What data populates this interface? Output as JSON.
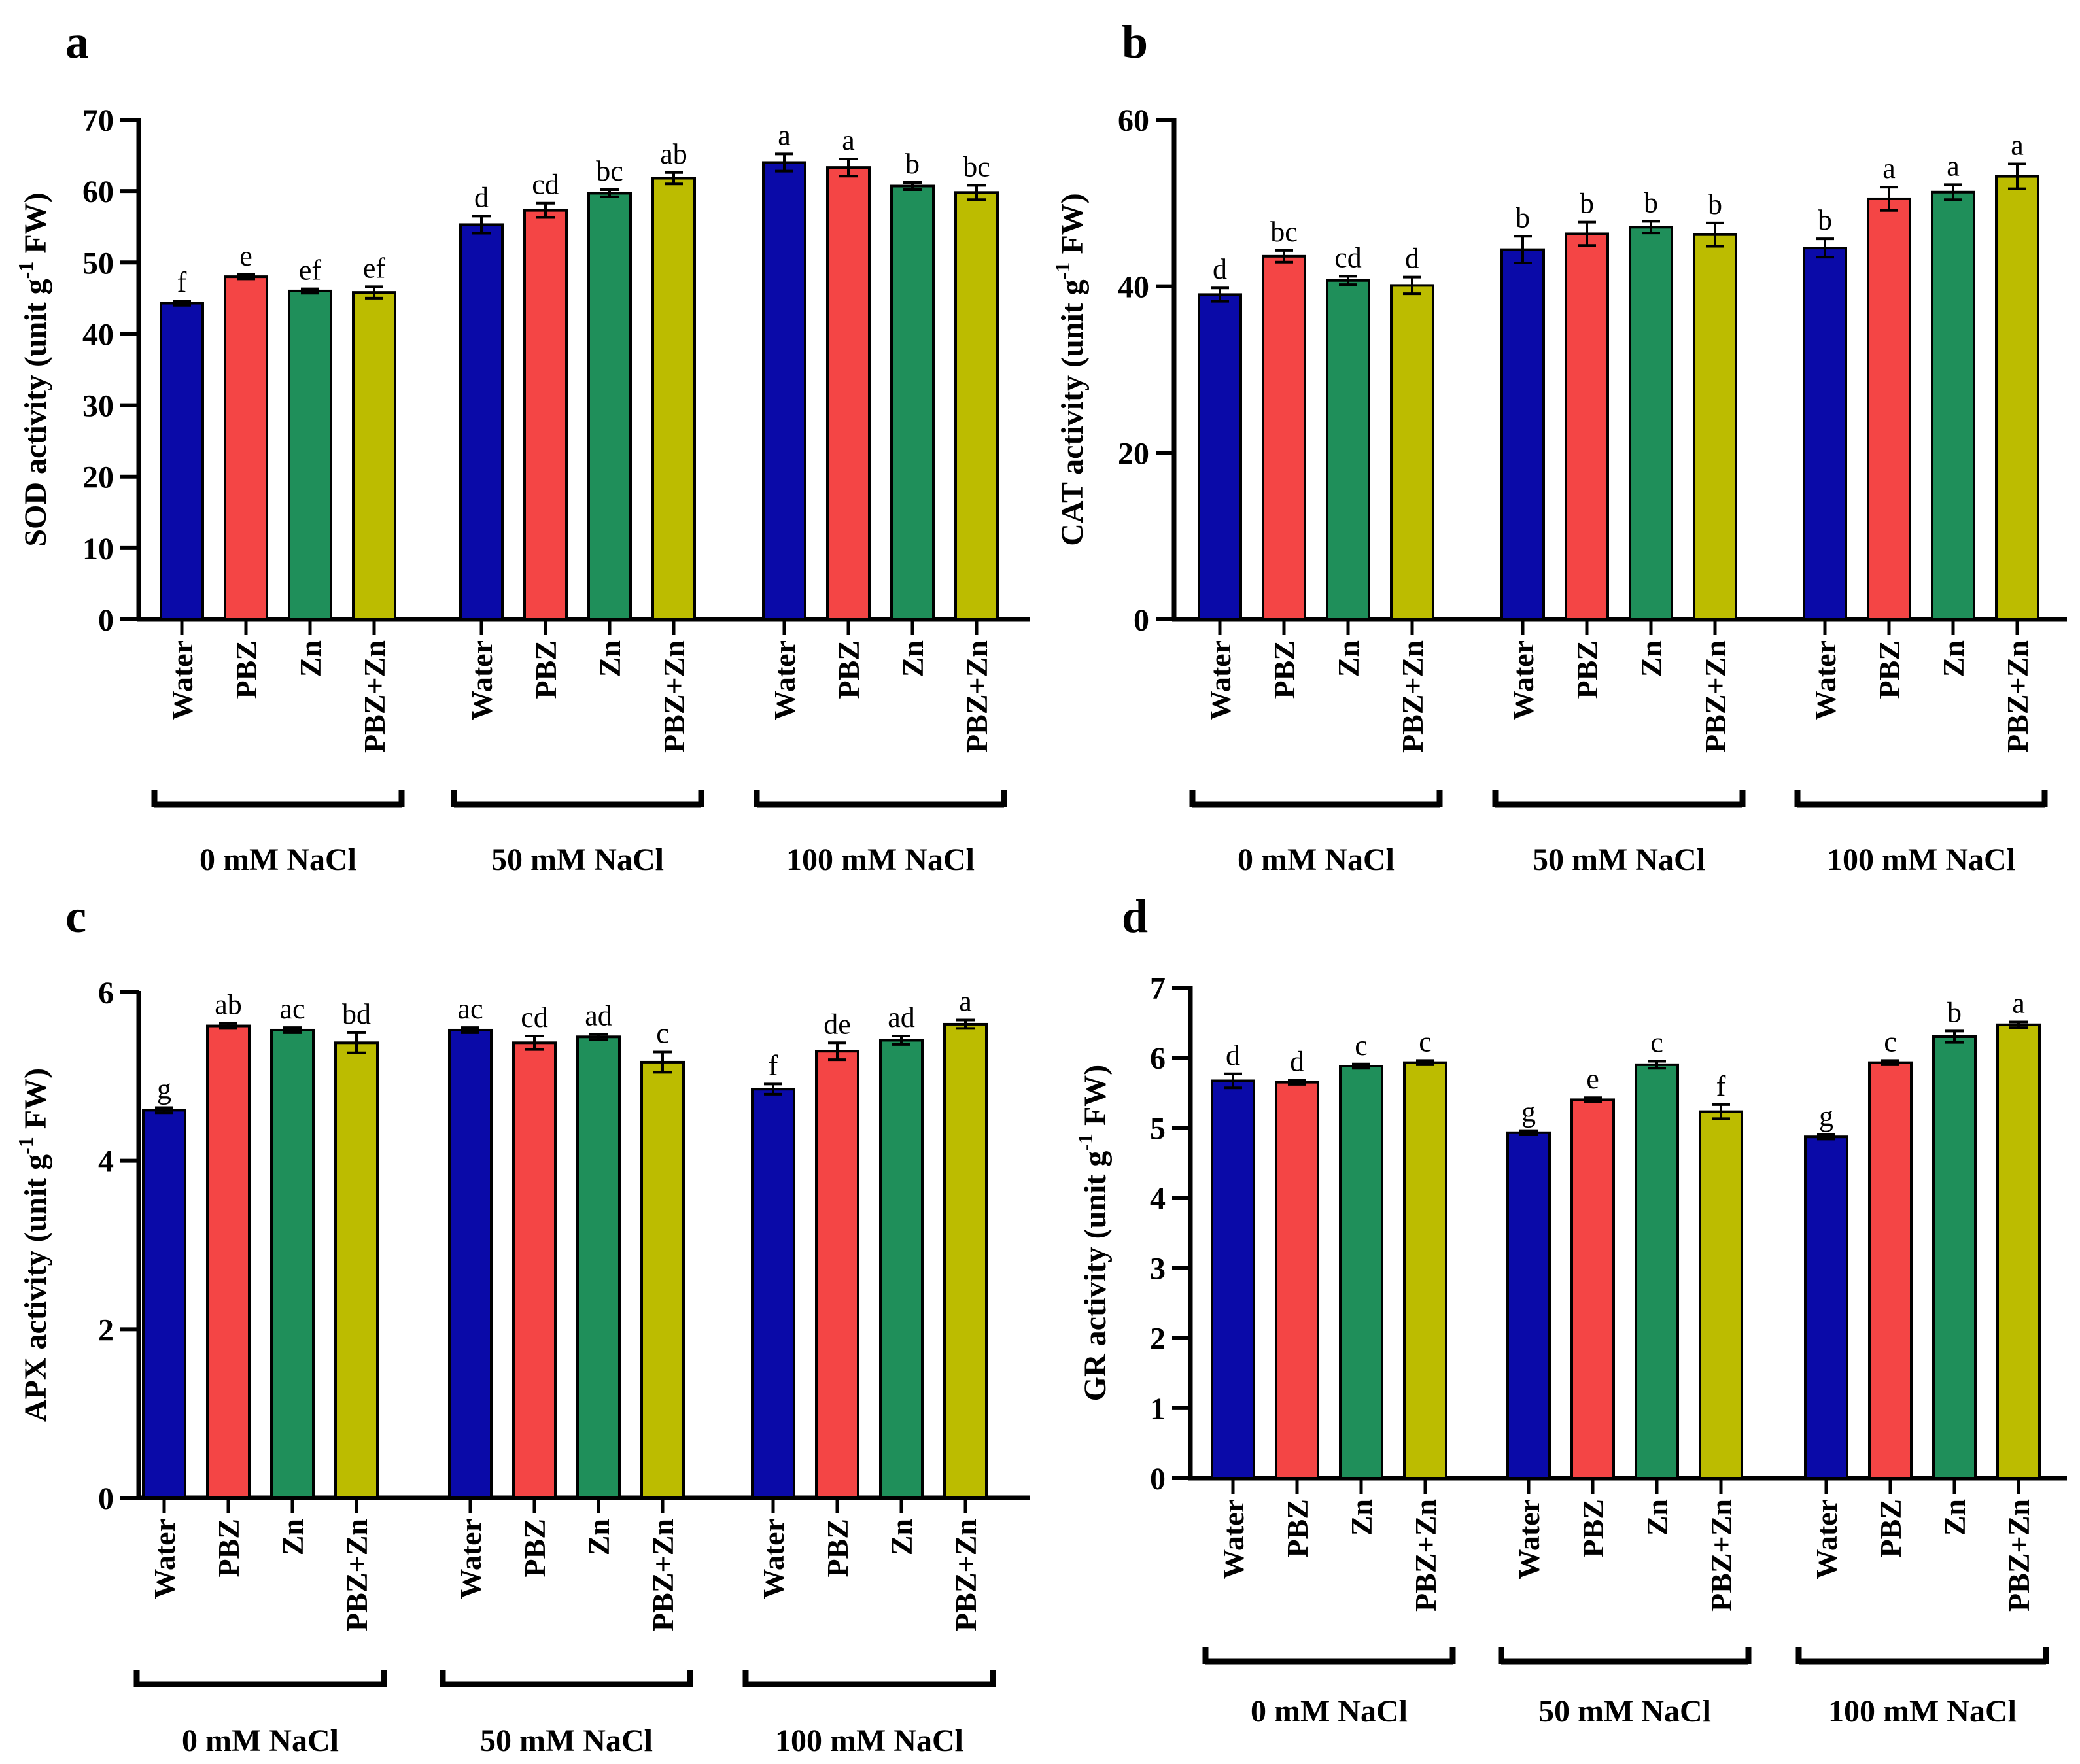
{
  "colors": {
    "Water": "#0a0aa8",
    "PBZ": "#f44545",
    "Zn": "#1f8f5a",
    "PBZ+Zn": "#bcbc00"
  },
  "chart_data": [
    {
      "panel": "a",
      "type": "bar",
      "ylabel_main": "SOD activity (unit g",
      "ylabel_sup": "-1",
      "ylabel_end": " FW)",
      "ylim": [
        0,
        70
      ],
      "yticks": [
        "0",
        "10",
        "20",
        "30",
        "40",
        "50",
        "60",
        "70"
      ],
      "groups": [
        {
          "label": "0 mM NaCl",
          "bars": [
            {
              "category": "Water",
              "value": 44.3,
              "error": 0.3,
              "sig": "f"
            },
            {
              "category": "PBZ",
              "value": 48.0,
              "error": 0.3,
              "sig": "e"
            },
            {
              "category": "Zn",
              "value": 46.0,
              "error": 0.3,
              "sig": "ef"
            },
            {
              "category": "PBZ+Zn",
              "value": 45.8,
              "error": 0.8,
              "sig": "ef"
            }
          ]
        },
        {
          "label": "50 mM NaCl",
          "bars": [
            {
              "category": "Water",
              "value": 55.3,
              "error": 1.2,
              "sig": "d"
            },
            {
              "category": "PBZ",
              "value": 57.3,
              "error": 1.0,
              "sig": "cd"
            },
            {
              "category": "Zn",
              "value": 59.7,
              "error": 0.5,
              "sig": "bc"
            },
            {
              "category": "PBZ+Zn",
              "value": 61.8,
              "error": 0.8,
              "sig": "ab"
            }
          ]
        },
        {
          "label": "100 mM NaCl",
          "bars": [
            {
              "category": "Water",
              "value": 64.0,
              "error": 1.2,
              "sig": "a"
            },
            {
              "category": "PBZ",
              "value": 63.3,
              "error": 1.2,
              "sig": "a"
            },
            {
              "category": "Zn",
              "value": 60.7,
              "error": 0.5,
              "sig": "b"
            },
            {
              "category": "PBZ+Zn",
              "value": 59.8,
              "error": 1.0,
              "sig": "bc"
            }
          ]
        }
      ]
    },
    {
      "panel": "b",
      "type": "bar",
      "ylabel_main": "CAT activity (unit g",
      "ylabel_sup": "-1",
      "ylabel_end": " FW)",
      "ylim": [
        0,
        60
      ],
      "yticks": [
        "0",
        "20",
        "40",
        "60"
      ],
      "groups": [
        {
          "label": "0 mM NaCl",
          "bars": [
            {
              "category": "Water",
              "value": 39.0,
              "error": 0.8,
              "sig": "d"
            },
            {
              "category": "PBZ",
              "value": 43.6,
              "error": 0.7,
              "sig": "bc"
            },
            {
              "category": "Zn",
              "value": 40.7,
              "error": 0.5,
              "sig": "cd"
            },
            {
              "category": "PBZ+Zn",
              "value": 40.1,
              "error": 1.0,
              "sig": "d"
            }
          ]
        },
        {
          "label": "50 mM NaCl",
          "bars": [
            {
              "category": "Water",
              "value": 44.4,
              "error": 1.6,
              "sig": "b"
            },
            {
              "category": "PBZ",
              "value": 46.3,
              "error": 1.4,
              "sig": "b"
            },
            {
              "category": "Zn",
              "value": 47.1,
              "error": 0.7,
              "sig": "b"
            },
            {
              "category": "PBZ+Zn",
              "value": 46.2,
              "error": 1.4,
              "sig": "b"
            }
          ]
        },
        {
          "label": "100 mM NaCl",
          "bars": [
            {
              "category": "Water",
              "value": 44.6,
              "error": 1.1,
              "sig": "b"
            },
            {
              "category": "PBZ",
              "value": 50.5,
              "error": 1.4,
              "sig": "a"
            },
            {
              "category": "Zn",
              "value": 51.3,
              "error": 0.9,
              "sig": "a"
            },
            {
              "category": "PBZ+Zn",
              "value": 53.2,
              "error": 1.5,
              "sig": "a"
            }
          ]
        }
      ]
    },
    {
      "panel": "c",
      "type": "bar",
      "ylabel_main": "APX activity (unit g",
      "ylabel_sup": "-1",
      "ylabel_end": " FW)",
      "ylim": [
        0,
        6
      ],
      "yticks": [
        "0",
        "2",
        "4",
        "6"
      ],
      "groups": [
        {
          "label": "0 mM NaCl",
          "bars": [
            {
              "category": "Water",
              "value": 4.6,
              "error": 0.03,
              "sig": "g"
            },
            {
              "category": "PBZ",
              "value": 5.6,
              "error": 0.03,
              "sig": "ab"
            },
            {
              "category": "Zn",
              "value": 5.55,
              "error": 0.03,
              "sig": "ac"
            },
            {
              "category": "PBZ+Zn",
              "value": 5.4,
              "error": 0.12,
              "sig": "bd"
            }
          ]
        },
        {
          "label": "50 mM NaCl",
          "bars": [
            {
              "category": "Water",
              "value": 5.55,
              "error": 0.03,
              "sig": "ac"
            },
            {
              "category": "PBZ",
              "value": 5.4,
              "error": 0.08,
              "sig": "cd"
            },
            {
              "category": "Zn",
              "value": 5.47,
              "error": 0.03,
              "sig": "ad"
            },
            {
              "category": "PBZ+Zn",
              "value": 5.17,
              "error": 0.12,
              "sig": "c"
            }
          ]
        },
        {
          "label": "100 mM NaCl",
          "bars": [
            {
              "category": "Water",
              "value": 4.85,
              "error": 0.06,
              "sig": "f"
            },
            {
              "category": "PBZ",
              "value": 5.3,
              "error": 0.1,
              "sig": "de"
            },
            {
              "category": "Zn",
              "value": 5.43,
              "error": 0.05,
              "sig": "ad"
            },
            {
              "category": "PBZ+Zn",
              "value": 5.62,
              "error": 0.05,
              "sig": "a"
            }
          ]
        }
      ]
    },
    {
      "panel": "d",
      "type": "bar",
      "ylabel_main": "GR activity (unit g",
      "ylabel_sup": "-1",
      "ylabel_end": " FW)",
      "ylim": [
        0,
        7
      ],
      "yticks": [
        "0",
        "1",
        "2",
        "3",
        "4",
        "5",
        "6",
        "7"
      ],
      "groups": [
        {
          "label": "0 mM NaCl",
          "bars": [
            {
              "category": "Water",
              "value": 5.67,
              "error": 0.1,
              "sig": "d"
            },
            {
              "category": "PBZ",
              "value": 5.65,
              "error": 0.03,
              "sig": "d"
            },
            {
              "category": "Zn",
              "value": 5.88,
              "error": 0.03,
              "sig": "c"
            },
            {
              "category": "PBZ+Zn",
              "value": 5.93,
              "error": 0.03,
              "sig": "c"
            }
          ]
        },
        {
          "label": "50 mM NaCl",
          "bars": [
            {
              "category": "Water",
              "value": 4.93,
              "error": 0.03,
              "sig": "g"
            },
            {
              "category": "PBZ",
              "value": 5.4,
              "error": 0.03,
              "sig": "e"
            },
            {
              "category": "Zn",
              "value": 5.9,
              "error": 0.05,
              "sig": "c"
            },
            {
              "category": "PBZ+Zn",
              "value": 5.23,
              "error": 0.1,
              "sig": "f"
            }
          ]
        },
        {
          "label": "100 mM NaCl",
          "bars": [
            {
              "category": "Water",
              "value": 4.87,
              "error": 0.03,
              "sig": "g"
            },
            {
              "category": "PBZ",
              "value": 5.93,
              "error": 0.03,
              "sig": "c"
            },
            {
              "category": "Zn",
              "value": 6.3,
              "error": 0.08,
              "sig": "b"
            },
            {
              "category": "PBZ+Zn",
              "value": 6.47,
              "error": 0.04,
              "sig": "a"
            }
          ]
        }
      ]
    }
  ]
}
